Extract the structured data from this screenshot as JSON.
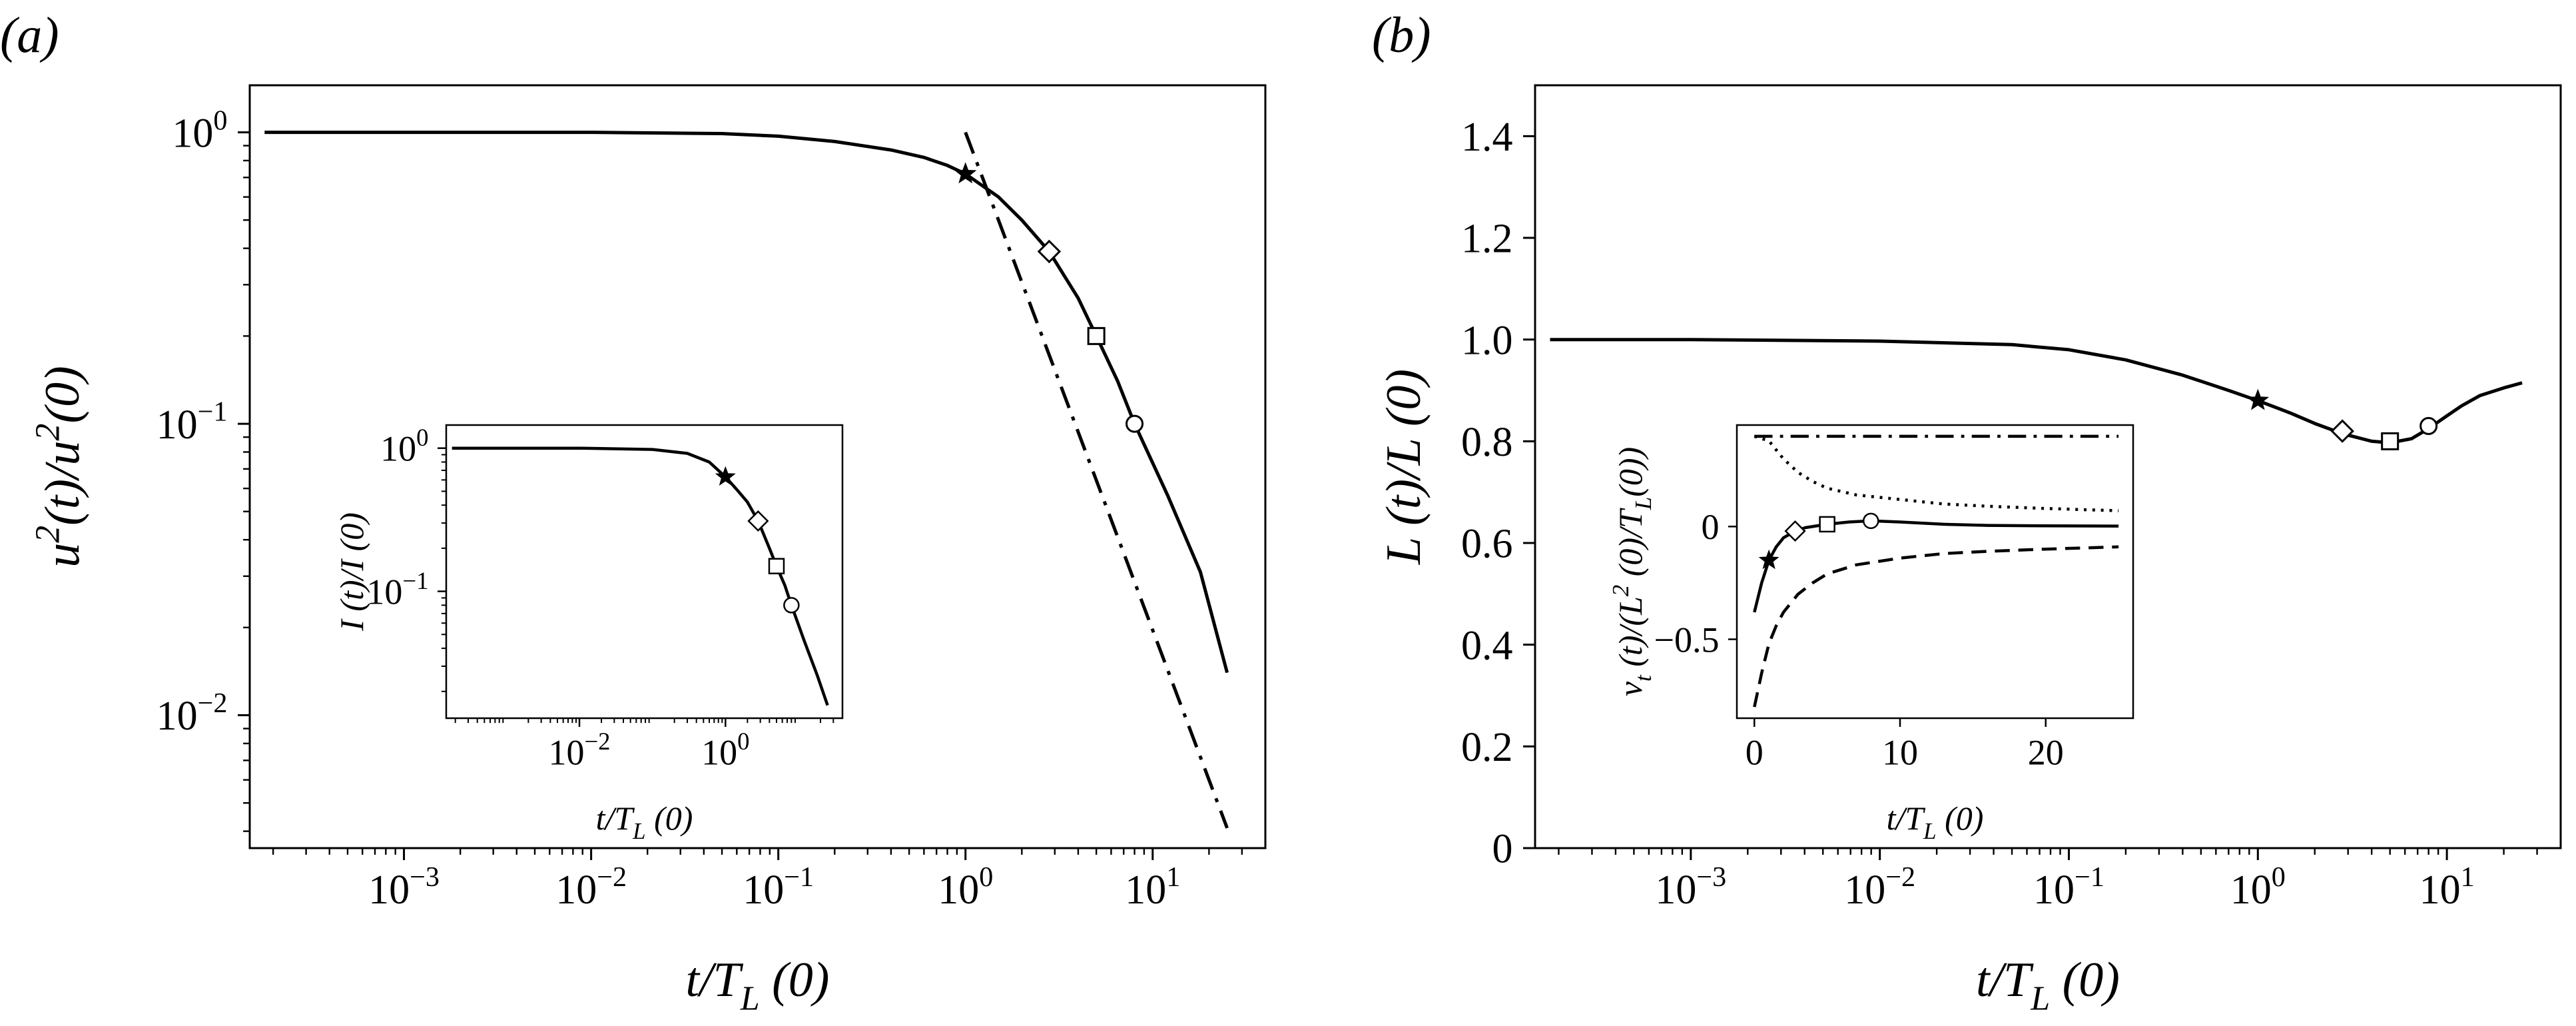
{
  "chart_data": [
    {
      "panel": "(a)",
      "type": "line",
      "xscale": "log",
      "yscale": "log",
      "xlabel": "t/T_L (0)",
      "ylabel": "u^2(t)/u^2(0)",
      "xlim": [
        0.00015,
        40
      ],
      "ylim": [
        0.0035,
        1.45
      ],
      "xticks": [
        {
          "value": 0.001,
          "base": "10",
          "exp": "−3"
        },
        {
          "value": 0.01,
          "base": "10",
          "exp": "−2"
        },
        {
          "value": 0.1,
          "base": "10",
          "exp": "−1"
        },
        {
          "value": 1,
          "base": "10",
          "exp": "0"
        },
        {
          "value": 10,
          "base": "10",
          "exp": "1"
        }
      ],
      "yticks": [
        {
          "value": 0.01,
          "base": "10",
          "exp": "−2"
        },
        {
          "value": 0.1,
          "base": "10",
          "exp": "−1"
        },
        {
          "value": 1,
          "base": "10",
          "exp": "0"
        }
      ],
      "series": [
        {
          "style": "solid",
          "x": [
            0.00018,
            0.001,
            0.01,
            0.05,
            0.1,
            0.2,
            0.4,
            0.6,
            0.8,
            1.0,
            1.5,
            2.0,
            2.8,
            4.0,
            5.0,
            6.5,
            8.0,
            12.0,
            18.0,
            25.0
          ],
          "y": [
            1.0,
            1.0,
            1.0,
            0.99,
            0.97,
            0.93,
            0.87,
            0.82,
            0.77,
            0.72,
            0.6,
            0.5,
            0.39,
            0.27,
            0.2,
            0.14,
            0.1,
            0.057,
            0.031,
            0.014
          ]
        },
        {
          "style": "dashdot",
          "x": [
            1.0,
            25.0
          ],
          "y": [
            1.0,
            0.0041
          ]
        }
      ],
      "markers": [
        {
          "symbol": "star",
          "x": 1.0,
          "y": 0.72
        },
        {
          "symbol": "diamond",
          "x": 2.8,
          "y": 0.39
        },
        {
          "symbol": "square",
          "x": 5.0,
          "y": 0.2
        },
        {
          "symbol": "circle",
          "x": 8.0,
          "y": 0.1
        }
      ],
      "inset": {
        "xscale": "log",
        "yscale": "log",
        "xlabel": "t/T_L (0)",
        "ylabel": "I (t)/I (0)",
        "xlim": [
          0.00015,
          40
        ],
        "ylim": [
          0.013,
          1.45
        ],
        "xticks": [
          {
            "value": 0.01,
            "base": "10",
            "exp": "−2"
          },
          {
            "value": 1,
            "base": "10",
            "exp": "0"
          }
        ],
        "yticks": [
          {
            "value": 0.1,
            "base": "10",
            "exp": "−1"
          },
          {
            "value": 1,
            "base": "10",
            "exp": "0"
          }
        ],
        "series": [
          {
            "style": "solid",
            "x": [
              0.00018,
              0.001,
              0.01,
              0.1,
              0.3,
              0.6,
              1.0,
              1.5,
              2.0,
              2.8,
              4.0,
              5.0,
              6.5,
              8.0,
              12.0,
              18.0,
              25.0
            ],
            "y": [
              1.0,
              1.0,
              1.0,
              0.98,
              0.92,
              0.8,
              0.63,
              0.5,
              0.42,
              0.31,
              0.2,
              0.15,
              0.11,
              0.08,
              0.045,
              0.026,
              0.016
            ]
          }
        ],
        "markers": [
          {
            "symbol": "star",
            "x": 1.0,
            "y": 0.63
          },
          {
            "symbol": "diamond",
            "x": 2.8,
            "y": 0.31
          },
          {
            "symbol": "square",
            "x": 5.0,
            "y": 0.15
          },
          {
            "symbol": "circle",
            "x": 8.0,
            "y": 0.08
          }
        ]
      }
    },
    {
      "panel": "(b)",
      "type": "line",
      "xscale": "log",
      "yscale": "linear",
      "xlabel": "t/T_L (0)",
      "ylabel": "L (t)/L (0)",
      "xlim": [
        0.00015,
        40
      ],
      "ylim": [
        0,
        1.5
      ],
      "xticks": [
        {
          "value": 0.001,
          "base": "10",
          "exp": "−3"
        },
        {
          "value": 0.01,
          "base": "10",
          "exp": "−2"
        },
        {
          "value": 0.1,
          "base": "10",
          "exp": "−1"
        },
        {
          "value": 1,
          "base": "10",
          "exp": "0"
        },
        {
          "value": 10,
          "base": "10",
          "exp": "1"
        }
      ],
      "yticks": [
        {
          "value": 0,
          "label": "0"
        },
        {
          "value": 0.2,
          "label": "0.2"
        },
        {
          "value": 0.4,
          "label": "0.4"
        },
        {
          "value": 0.6,
          "label": "0.6"
        },
        {
          "value": 0.8,
          "label": "0.8"
        },
        {
          "value": 1.0,
          "label": "1.0"
        },
        {
          "value": 1.2,
          "label": "1.2"
        },
        {
          "value": 1.4,
          "label": "1.4"
        }
      ],
      "series": [
        {
          "style": "solid",
          "x": [
            0.00018,
            0.001,
            0.01,
            0.05,
            0.1,
            0.2,
            0.4,
            0.7,
            1.0,
            1.5,
            2.0,
            2.8,
            4.0,
            5.0,
            6.5,
            8.0,
            10.0,
            12.0,
            15.0,
            20.0,
            25.0
          ],
          "y": [
            1.0,
            1.0,
            0.997,
            0.99,
            0.98,
            0.96,
            0.93,
            0.9,
            0.88,
            0.855,
            0.835,
            0.815,
            0.8,
            0.797,
            0.805,
            0.825,
            0.85,
            0.87,
            0.89,
            0.905,
            0.915
          ]
        }
      ],
      "markers": [
        {
          "symbol": "star",
          "x": 1.0,
          "y": 0.88
        },
        {
          "symbol": "diamond",
          "x": 2.8,
          "y": 0.82
        },
        {
          "symbol": "square",
          "x": 5.0,
          "y": 0.8
        },
        {
          "symbol": "circle",
          "x": 8.0,
          "y": 0.83
        }
      ],
      "inset": {
        "xscale": "linear",
        "yscale": "linear",
        "xlabel": "t/T_L (0)",
        "ylabel": "ν_t (t)/(L^2 (0)/T_L(0))",
        "xlim": [
          -1.2,
          26
        ],
        "ylim": [
          -0.85,
          0.45
        ],
        "xticks": [
          {
            "value": 0,
            "label": "0"
          },
          {
            "value": 10,
            "label": "10"
          },
          {
            "value": 20,
            "label": "20"
          }
        ],
        "yticks": [
          {
            "value": 0,
            "label": "0"
          },
          {
            "value": -0.5,
            "label": "−0.5"
          }
        ],
        "series": [
          {
            "style": "dashdot",
            "x": [
              0,
              25
            ],
            "y": [
              0.4,
              0.4
            ]
          },
          {
            "style": "dotted",
            "x": [
              0,
              1,
              2,
              3,
              4,
              5,
              7,
              10,
              13,
              16,
              20,
              25
            ],
            "y": [
              0.4,
              0.38,
              0.3,
              0.24,
              0.2,
              0.17,
              0.14,
              0.12,
              0.1,
              0.09,
              0.08,
              0.07
            ]
          },
          {
            "style": "solid",
            "x": [
              0,
              0.5,
              1.0,
              1.5,
              2.0,
              2.8,
              3.5,
              5.0,
              6.5,
              8.0,
              10,
              13,
              16,
              20,
              25
            ],
            "y": [
              -0.38,
              -0.25,
              -0.15,
              -0.09,
              -0.05,
              -0.02,
              -0.005,
              0.01,
              0.02,
              0.025,
              0.02,
              0.01,
              0.005,
              0.003,
              0.002
            ]
          },
          {
            "style": "dashed",
            "x": [
              0,
              0.5,
              1,
              1.5,
              2,
              3,
              4,
              5,
              7,
              10,
              13,
              16,
              20,
              25
            ],
            "y": [
              -0.8,
              -0.65,
              -0.52,
              -0.44,
              -0.38,
              -0.3,
              -0.25,
              -0.21,
              -0.17,
              -0.14,
              -0.12,
              -0.11,
              -0.1,
              -0.09
            ]
          }
        ],
        "markers": [
          {
            "symbol": "star",
            "x": 1.0,
            "y": -0.15
          },
          {
            "symbol": "diamond",
            "x": 2.8,
            "y": -0.02
          },
          {
            "symbol": "square",
            "x": 5.0,
            "y": 0.01
          },
          {
            "symbol": "circle",
            "x": 8.0,
            "y": 0.025
          }
        ]
      }
    }
  ]
}
